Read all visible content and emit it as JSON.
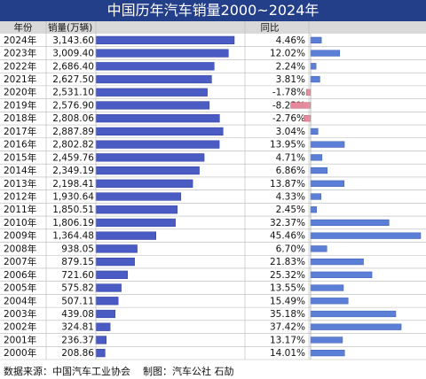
{
  "title": "中国历年汽车销量2000~2024年",
  "headers": {
    "year": "年份",
    "sales": "销量(万辆)",
    "yoy": "同比"
  },
  "footer": {
    "source": "数据来源：中国汽车工业协会",
    "credit": "制图：汽车公社 石劼"
  },
  "colors": {
    "title_bg": "#243f8a",
    "bar": "#4a5bc4",
    "yoy_pos": "#5b7fd6",
    "yoy_neg": "#e6899d",
    "header_bg": "#d9d9d9",
    "grid": "#b8b8b8"
  },
  "chart_data": {
    "type": "table",
    "rows": [
      {
        "year": "2024年",
        "sales": "3,143.60",
        "sales_value": 3143.6,
        "yoy": "4.46%",
        "yoy_value": 4.46
      },
      {
        "year": "2023年",
        "sales": "3,009.40",
        "sales_value": 3009.4,
        "yoy": "12.02%",
        "yoy_value": 12.02
      },
      {
        "year": "2022年",
        "sales": "2,686.40",
        "sales_value": 2686.4,
        "yoy": "2.24%",
        "yoy_value": 2.24
      },
      {
        "year": "2021年",
        "sales": "2,627.50",
        "sales_value": 2627.5,
        "yoy": "3.81%",
        "yoy_value": 3.81
      },
      {
        "year": "2020年",
        "sales": "2,531.10",
        "sales_value": 2531.1,
        "yoy": "-1.78%",
        "yoy_value": -1.78
      },
      {
        "year": "2019年",
        "sales": "2,576.90",
        "sales_value": 2576.9,
        "yoy": "-8.23%",
        "yoy_value": -8.23
      },
      {
        "year": "2018年",
        "sales": "2,808.06",
        "sales_value": 2808.06,
        "yoy": "-2.76%",
        "yoy_value": -2.76
      },
      {
        "year": "2017年",
        "sales": "2,887.89",
        "sales_value": 2887.89,
        "yoy": "3.04%",
        "yoy_value": 3.04
      },
      {
        "year": "2016年",
        "sales": "2,802.82",
        "sales_value": 2802.82,
        "yoy": "13.95%",
        "yoy_value": 13.95
      },
      {
        "year": "2015年",
        "sales": "2,459.76",
        "sales_value": 2459.76,
        "yoy": "4.71%",
        "yoy_value": 4.71
      },
      {
        "year": "2014年",
        "sales": "2,349.19",
        "sales_value": 2349.19,
        "yoy": "6.86%",
        "yoy_value": 6.86
      },
      {
        "year": "2013年",
        "sales": "2,198.41",
        "sales_value": 2198.41,
        "yoy": "13.87%",
        "yoy_value": 13.87
      },
      {
        "year": "2012年",
        "sales": "1,930.64",
        "sales_value": 1930.64,
        "yoy": "4.33%",
        "yoy_value": 4.33
      },
      {
        "year": "2011年",
        "sales": "1,850.51",
        "sales_value": 1850.51,
        "yoy": "2.45%",
        "yoy_value": 2.45
      },
      {
        "year": "2010年",
        "sales": "1,806.19",
        "sales_value": 1806.19,
        "yoy": "32.37%",
        "yoy_value": 32.37
      },
      {
        "year": "2009年",
        "sales": "1,364.48",
        "sales_value": 1364.48,
        "yoy": "45.46%",
        "yoy_value": 45.46
      },
      {
        "year": "2008年",
        "sales": "938.05",
        "sales_value": 938.05,
        "yoy": "6.70%",
        "yoy_value": 6.7
      },
      {
        "year": "2007年",
        "sales": "879.15",
        "sales_value": 879.15,
        "yoy": "21.83%",
        "yoy_value": 21.83
      },
      {
        "year": "2006年",
        "sales": "721.60",
        "sales_value": 721.6,
        "yoy": "25.32%",
        "yoy_value": 25.32
      },
      {
        "year": "2005年",
        "sales": "575.82",
        "sales_value": 575.82,
        "yoy": "13.55%",
        "yoy_value": 13.55
      },
      {
        "year": "2004年",
        "sales": "507.11",
        "sales_value": 507.11,
        "yoy": "15.49%",
        "yoy_value": 15.49
      },
      {
        "year": "2003年",
        "sales": "439.08",
        "sales_value": 439.08,
        "yoy": "35.18%",
        "yoy_value": 35.18
      },
      {
        "year": "2002年",
        "sales": "324.81",
        "sales_value": 324.81,
        "yoy": "37.42%",
        "yoy_value": 37.42
      },
      {
        "year": "2001年",
        "sales": "236.37",
        "sales_value": 236.37,
        "yoy": "13.17%",
        "yoy_value": 13.17
      },
      {
        "year": "2000年",
        "sales": "208.86",
        "sales_value": 208.86,
        "yoy": "14.01%",
        "yoy_value": 14.01
      }
    ]
  }
}
